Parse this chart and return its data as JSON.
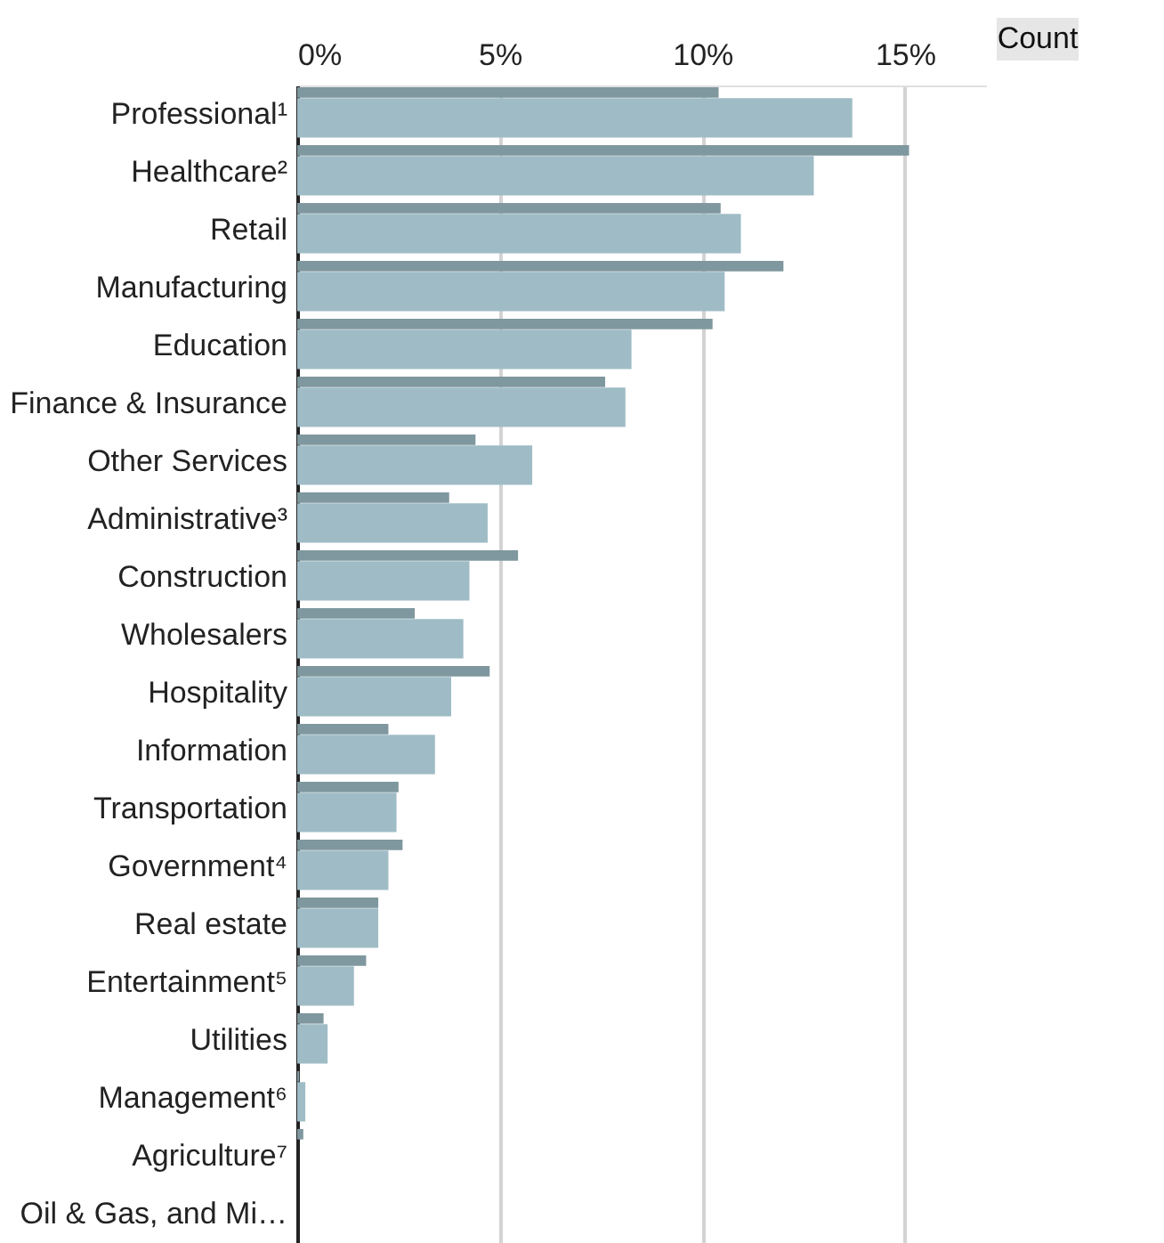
{
  "chart_data": {
    "type": "bar",
    "orientation": "horizontal",
    "categories": [
      "Professional¹",
      "Healthcare²",
      "Retail",
      "Manufacturing",
      "Education",
      "Finance & Insurance",
      "Other Services",
      "Administrative³",
      "Construction",
      "Wholesalers",
      "Hospitality",
      "Information",
      "Transportation",
      "Government⁴",
      "Real estate",
      "Entertainment⁵",
      "Utilities",
      "Management⁶",
      "Agriculture⁷",
      "Oil & Gas, and Mi…"
    ],
    "series": [
      {
        "color": "#7f979e",
        "values": [
          10.4,
          15.1,
          10.45,
          12.0,
          10.25,
          7.6,
          4.4,
          3.75,
          5.45,
          2.9,
          4.75,
          2.25,
          2.5,
          2.6,
          2.0,
          1.7,
          0.65,
          0.05,
          0.15,
          0
        ]
      },
      {
        "color": "#9fbcc6",
        "values": [
          13.7,
          12.75,
          10.95,
          10.55,
          8.25,
          8.1,
          5.8,
          4.7,
          4.25,
          4.1,
          3.8,
          3.4,
          2.45,
          2.25,
          2.0,
          1.4,
          0.75,
          0.2,
          0,
          0
        ]
      }
    ],
    "xlim": [
      0,
      17
    ],
    "xticks": [
      {
        "value": 0,
        "label": "0%"
      },
      {
        "value": 5,
        "label": "5%"
      },
      {
        "value": 10,
        "label": "10%"
      },
      {
        "value": 15,
        "label": "15%"
      }
    ],
    "grid": "x",
    "annotations": [
      "Count"
    ]
  }
}
